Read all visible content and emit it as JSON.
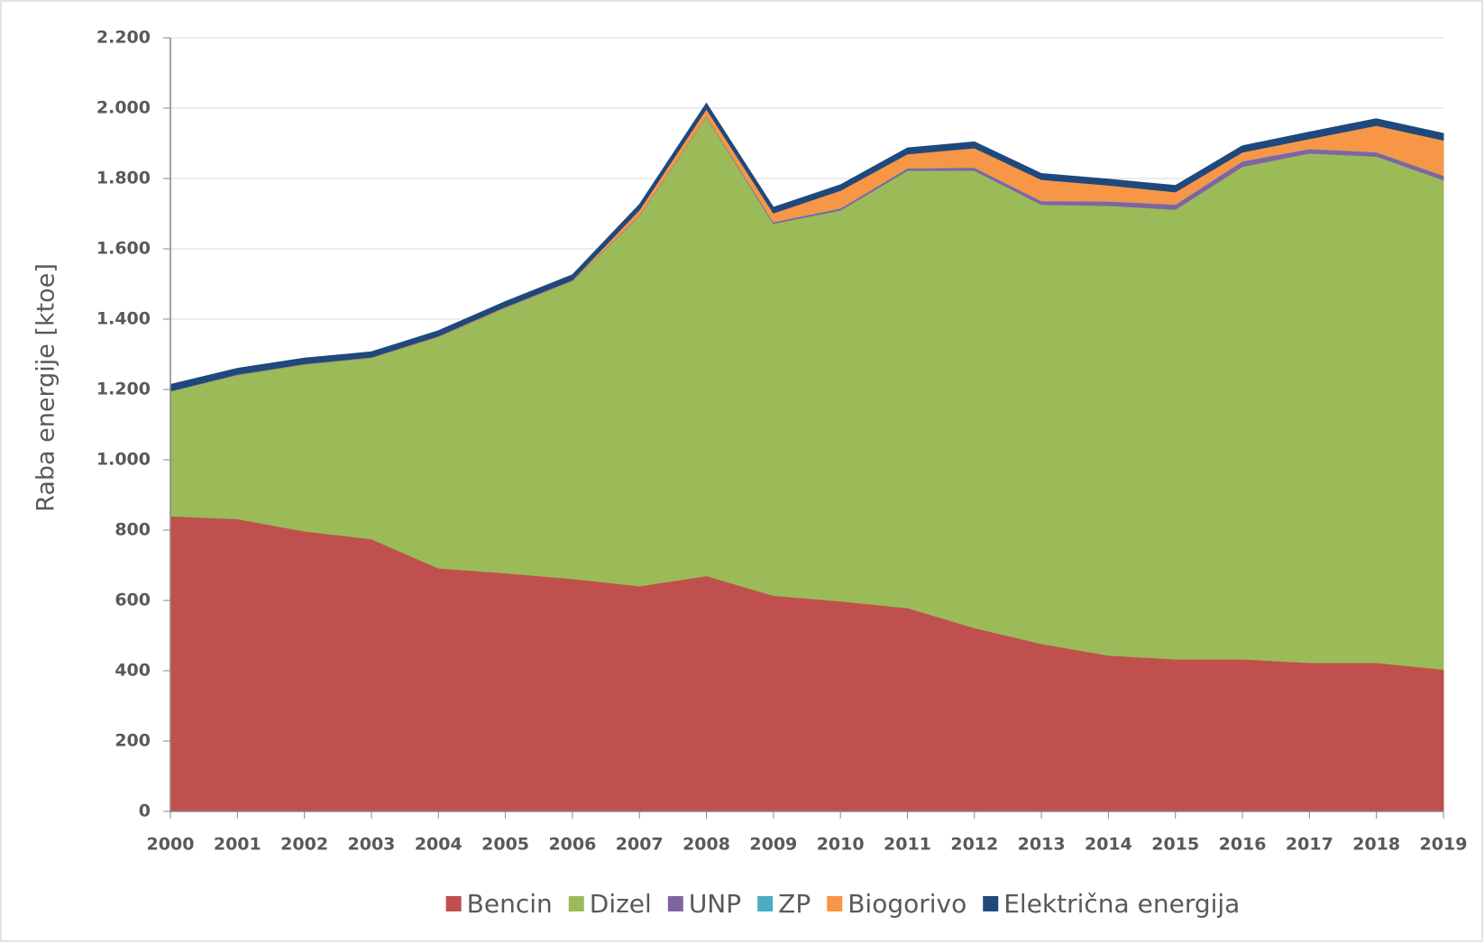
{
  "chart_data": {
    "type": "stacked-area",
    "y_label": "Raba energije [ktoe]",
    "categories": [
      "2000",
      "2001",
      "2002",
      "2003",
      "2004",
      "2005",
      "2006",
      "2007",
      "2008",
      "2009",
      "2010",
      "2011",
      "2012",
      "2013",
      "2014",
      "2015",
      "2016",
      "2017",
      "2018",
      "2019"
    ],
    "series": [
      {
        "name": "Bencin",
        "color": "#c0504d",
        "values": [
          840,
          832,
          797,
          775,
          692,
          678,
          662,
          641,
          670,
          614,
          598,
          579,
          522,
          477,
          444,
          433,
          433,
          423,
          423,
          404
        ]
      },
      {
        "name": "Dizel",
        "color": "#9bbb59",
        "values": [
          355,
          409,
          474,
          515,
          657,
          754,
          846,
          1053,
          1306,
          1058,
          1112,
          1244,
          1301,
          1249,
          1279,
          1279,
          1401,
          1449,
          1440,
          1392
        ]
      },
      {
        "name": "UNP",
        "color": "#8064a2",
        "values": [
          1,
          1,
          1,
          1,
          1,
          1,
          1,
          2,
          2,
          4,
          5,
          6,
          8,
          10,
          12,
          14,
          15,
          12,
          12,
          12
        ]
      },
      {
        "name": "ZP",
        "color": "#4bacc6",
        "values": [
          0,
          0,
          0,
          0,
          0,
          0,
          0,
          0,
          0,
          1,
          1,
          1,
          1,
          1,
          1,
          1,
          1,
          1,
          1,
          1
        ]
      },
      {
        "name": "Biogorivo",
        "color": "#f79646",
        "values": [
          0,
          1,
          1,
          1,
          2,
          2,
          2,
          15,
          20,
          25,
          50,
          40,
          55,
          60,
          45,
          35,
          25,
          28,
          75,
          100
        ]
      },
      {
        "name": "Električna energija",
        "color": "#1f497d",
        "values": [
          18,
          17,
          16,
          15,
          15,
          15,
          15,
          15,
          16,
          16,
          16,
          17,
          17,
          17,
          17,
          18,
          18,
          19,
          19,
          19
        ]
      }
    ],
    "ylim": [
      0,
      2200
    ],
    "yticks": [
      0,
      200,
      400,
      600,
      800,
      {
        "value": 1000,
        "label": "1.000"
      },
      {
        "value": 1200,
        "label": "1.200"
      },
      {
        "value": 1400,
        "label": "1.400"
      },
      {
        "value": 1600,
        "label": "1.600"
      },
      {
        "value": 1800,
        "label": "1.800"
      },
      {
        "value": 2000,
        "label": "2.000"
      },
      {
        "value": 2200,
        "label": "2.200"
      }
    ],
    "grid": true,
    "legend": "bottom"
  }
}
